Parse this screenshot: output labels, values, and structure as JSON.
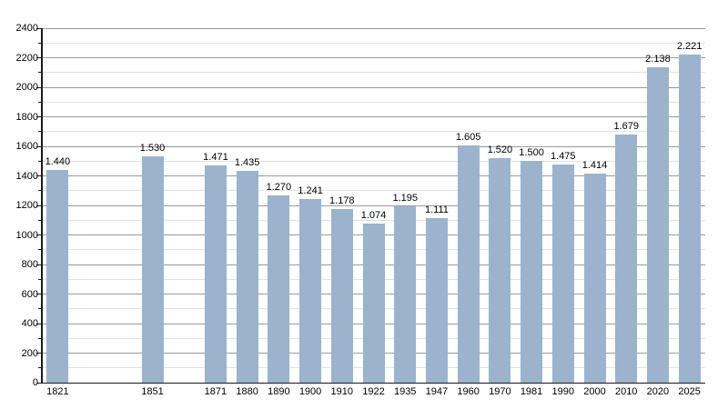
{
  "chart_data": {
    "type": "bar",
    "title": "",
    "xlabel": "",
    "ylabel": "",
    "categories": [
      "1821",
      "1851",
      "1871",
      "1880",
      "1890",
      "1900",
      "1910",
      "1922",
      "1935",
      "1947",
      "1960",
      "1970",
      "1981",
      "1990",
      "2000",
      "2010",
      "2020",
      "2025"
    ],
    "values": [
      1440,
      1530,
      1471,
      1435,
      1270,
      1241,
      1178,
      1074,
      1195,
      1111,
      1605,
      1520,
      1500,
      1475,
      1414,
      1679,
      2138,
      2221
    ],
    "bar_labels": [
      "1.440",
      "1.530",
      "1.471",
      "1.435",
      "1.270",
      "1.241",
      "1.178",
      "1.074",
      "1.195",
      "1.111",
      "1.605",
      "1.520",
      "1.500",
      "1.475",
      "1.414",
      "1.679",
      "2.138",
      "2.221"
    ],
    "ylim": [
      0,
      2400
    ],
    "y_major_step": 200,
    "y_minor_step": 100,
    "y_tick_labels": [
      "0",
      "200",
      "400",
      "600",
      "800",
      "1000",
      "1200",
      "1400",
      "1600",
      "1800",
      "2000",
      "2200",
      "2400"
    ],
    "grid": true,
    "legend": "none",
    "slot_index": [
      0,
      3,
      5,
      6,
      7,
      8,
      9,
      10,
      11,
      12,
      13,
      14,
      15,
      16,
      17,
      18,
      19,
      20
    ],
    "total_slots": 21,
    "colors": {
      "bar": "#9bb3cd",
      "grid_major": "#9a9a9a",
      "grid_minor": "#e2e2e2",
      "axis": "#1a1a1a",
      "text": "#000000",
      "background": "#ffffff"
    }
  }
}
